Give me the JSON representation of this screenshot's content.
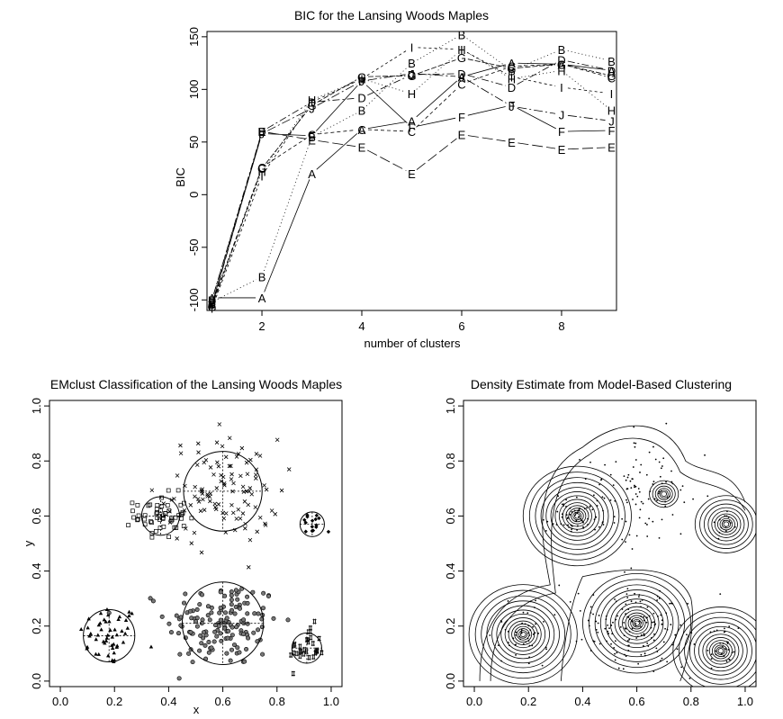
{
  "chart_data": [
    {
      "type": "line",
      "title": "BIC for the Lansing Woods Maples",
      "xlabel": "number of clusters",
      "ylabel": "BIC",
      "xlim": [
        0.9,
        9.1
      ],
      "ylim": [
        -110,
        155
      ],
      "xticks": [
        2,
        4,
        6,
        8
      ],
      "yticks": [
        -100,
        -50,
        0,
        50,
        100,
        150
      ],
      "x": [
        1,
        2,
        3,
        4,
        5,
        6,
        7,
        8,
        9
      ],
      "series": [
        {
          "name": "A",
          "dash": "",
          "values": [
            -98,
            -98,
            20,
            62,
            70,
            112,
            125,
            124,
            118
          ]
        },
        {
          "name": "B",
          "dash": "1,3",
          "values": [
            -102,
            -78,
            55,
            80,
            125,
            152,
            118,
            138,
            127
          ]
        },
        {
          "name": "C",
          "dash": "4,3",
          "values": [
            -104,
            26,
            57,
            62,
            60,
            105,
            122,
            124,
            111
          ]
        },
        {
          "name": "D",
          "dash": "8,3,2,3",
          "values": [
            -100,
            60,
            88,
            92,
            114,
            115,
            102,
            128,
            118
          ]
        },
        {
          "name": "E",
          "dash": "12,4",
          "values": [
            -106,
            60,
            52,
            45,
            20,
            57,
            50,
            43,
            45
          ]
        },
        {
          "name": "F",
          "dash": "",
          "values": [
            -104,
            58,
            56,
            108,
            64,
            74,
            85,
            60,
            61
          ]
        },
        {
          "name": "G",
          "dash": "6,2",
          "values": [
            -106,
            25,
            85,
            112,
            113,
            130,
            120,
            124,
            113
          ]
        },
        {
          "name": "H",
          "dash": "1,3",
          "values": [
            -102,
            22,
            90,
            110,
            96,
            138,
            110,
            118,
            80
          ]
        },
        {
          "name": "I",
          "dash": "3,3",
          "values": [
            -108,
            18,
            88,
            110,
            140,
            138,
            112,
            102,
            96
          ]
        },
        {
          "name": "J",
          "dash": "10,3,2,3",
          "values": [
            -100,
            58,
            82,
            108,
            115,
            112,
            84,
            76,
            70
          ]
        }
      ]
    },
    {
      "type": "scatter",
      "title": "EMclust Classification of the Lansing Woods Maples",
      "xlabel": "x",
      "ylabel": "y",
      "xlim": [
        -0.04,
        1.04
      ],
      "ylim": [
        -0.02,
        1.02
      ],
      "xticks": [
        "0.0",
        "0.2",
        "0.4",
        "0.6",
        "0.8",
        "1.0"
      ],
      "yticks": [
        "0.0",
        "0.2",
        "0.4",
        "0.6",
        "0.8",
        "1.0"
      ],
      "clusters": [
        {
          "symbol": "triangle",
          "center": [
            0.18,
            0.165
          ],
          "radius": 0.095,
          "spread": [
            0.07,
            0.07
          ],
          "count": 50
        },
        {
          "symbol": "circle-dot",
          "center": [
            0.6,
            0.21
          ],
          "radius": 0.15,
          "spread": [
            0.13,
            0.1
          ],
          "count": 150
        },
        {
          "symbol": "hash",
          "center": [
            0.91,
            0.12
          ],
          "radius": 0.055,
          "spread": [
            0.04,
            0.05
          ],
          "count": 30
        },
        {
          "symbol": "square",
          "center": [
            0.37,
            0.6
          ],
          "radius": 0.07,
          "spread": [
            0.06,
            0.05
          ],
          "count": 55
        },
        {
          "symbol": "x",
          "center": [
            0.6,
            0.69
          ],
          "radius": 0.145,
          "spread": [
            0.13,
            0.12
          ],
          "count": 110
        },
        {
          "symbol": "diamond",
          "center": [
            0.93,
            0.57
          ],
          "radius": 0.045,
          "spread": [
            0.03,
            0.03
          ],
          "count": 15
        }
      ]
    },
    {
      "type": "contour",
      "title": "Density Estimate from Model-Based Clustering",
      "xlim": [
        -0.04,
        1.04
      ],
      "ylim": [
        -0.02,
        1.02
      ],
      "xticks": [
        "0.0",
        "0.2",
        "0.4",
        "0.6",
        "0.8",
        "1.0"
      ],
      "yticks": [
        "0.0",
        "0.2",
        "0.4",
        "0.6",
        "0.8",
        "1.0"
      ],
      "peaks": [
        {
          "center": [
            0.18,
            0.17
          ],
          "rings": 14
        },
        {
          "center": [
            0.6,
            0.21
          ],
          "rings": 14
        },
        {
          "center": [
            0.91,
            0.11
          ],
          "rings": 13
        },
        {
          "center": [
            0.38,
            0.6
          ],
          "rings": 14
        },
        {
          "center": [
            0.93,
            0.57
          ],
          "rings": 10
        },
        {
          "center": [
            0.7,
            0.68
          ],
          "rings": 6
        }
      ]
    }
  ]
}
